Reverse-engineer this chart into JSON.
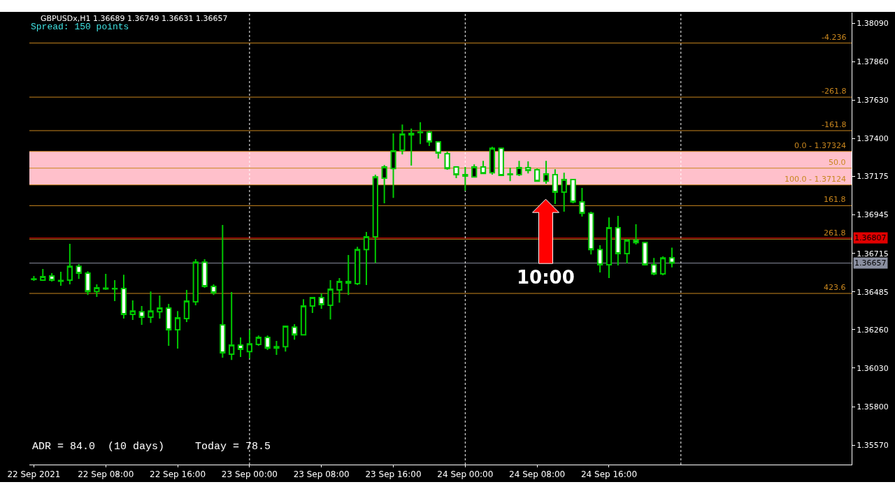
{
  "chart_data": {
    "type": "candlestick",
    "color": "#00c800",
    "x": [
      "2021-09-22T00:00",
      "2021-09-22T01:00",
      "2021-09-22T02:00",
      "2021-09-22T03:00",
      "2021-09-22T04:00",
      "2021-09-22T05:00",
      "2021-09-22T06:00",
      "2021-09-22T07:00",
      "2021-09-22T08:00",
      "2021-09-22T09:00",
      "2021-09-22T10:00",
      "2021-09-22T11:00",
      "2021-09-22T12:00",
      "2021-09-22T13:00",
      "2021-09-22T14:00",
      "2021-09-22T15:00",
      "2021-09-22T16:00",
      "2021-09-22T17:00",
      "2021-09-22T18:00",
      "2021-09-22T19:00",
      "2021-09-22T20:00",
      "2021-09-22T21:00",
      "2021-09-22T22:00",
      "2021-09-22T23:00",
      "2021-09-23T00:00",
      "2021-09-23T01:00",
      "2021-09-23T02:00",
      "2021-09-23T03:00",
      "2021-09-23T04:00",
      "2021-09-23T05:00",
      "2021-09-23T06:00",
      "2021-09-23T07:00",
      "2021-09-23T08:00",
      "2021-09-23T09:00",
      "2021-09-23T10:00",
      "2021-09-23T11:00",
      "2021-09-23T12:00",
      "2021-09-23T13:00",
      "2021-09-23T14:00",
      "2021-09-23T15:00",
      "2021-09-23T16:00",
      "2021-09-23T17:00",
      "2021-09-23T18:00",
      "2021-09-23T19:00",
      "2021-09-23T20:00",
      "2021-09-23T21:00",
      "2021-09-23T22:00",
      "2021-09-23T23:00",
      "2021-09-24T00:00",
      "2021-09-24T01:00",
      "2021-09-24T02:00",
      "2021-09-24T03:00",
      "2021-09-24T04:00",
      "2021-09-24T05:00",
      "2021-09-24T06:00",
      "2021-09-24T07:00",
      "2021-09-24T08:00",
      "2021-09-24T09:00",
      "2021-09-24T10:00",
      "2021-09-24T11:00",
      "2021-09-24T12:00",
      "2021-09-24T13:00",
      "2021-09-24T14:00",
      "2021-09-24T15:00",
      "2021-09-24T16:00",
      "2021-09-24T17:00",
      "2021-09-24T18:00",
      "2021-09-24T19:00",
      "2021-09-24T20:00",
      "2021-09-24T21:00",
      "2021-09-24T22:00",
      "2021-09-24T23:00"
    ],
    "ohlc": [
      [
        1.36563,
        1.3658,
        1.36551,
        1.36559
      ],
      [
        1.36555,
        1.36622,
        1.36555,
        1.36576
      ],
      [
        1.3658,
        1.36597,
        1.36547,
        1.36555
      ],
      [
        1.36553,
        1.36605,
        1.36522,
        1.36549
      ],
      [
        1.36555,
        1.36772,
        1.3653,
        1.36638
      ],
      [
        1.36638,
        1.36651,
        1.36563,
        1.36597
      ],
      [
        1.36597,
        1.36609,
        1.36467,
        1.36488
      ],
      [
        1.36488,
        1.3653,
        1.36455,
        1.36509
      ],
      [
        1.36507,
        1.36593,
        1.36497,
        1.36503
      ],
      [
        1.36505,
        1.36555,
        1.3643,
        1.36503
      ],
      [
        1.36505,
        1.36588,
        1.36326,
        1.36351
      ],
      [
        1.36351,
        1.36434,
        1.36317,
        1.36371
      ],
      [
        1.36367,
        1.36401,
        1.36288,
        1.36334
      ],
      [
        1.36334,
        1.36488,
        1.363,
        1.36371
      ],
      [
        1.36367,
        1.36463,
        1.36326,
        1.36388
      ],
      [
        1.36388,
        1.36413,
        1.36163,
        1.36259
      ],
      [
        1.36259,
        1.36371,
        1.36146,
        1.3633
      ],
      [
        1.36326,
        1.36497,
        1.36305,
        1.3643
      ],
      [
        1.36426,
        1.3668,
        1.36405,
        1.36663
      ],
      [
        1.36663,
        1.3668,
        1.36509,
        1.36518
      ],
      [
        1.36518,
        1.3653,
        1.36467,
        1.3648
      ],
      [
        1.36288,
        1.36885,
        1.36092,
        1.36121
      ],
      [
        1.36113,
        1.36484,
        1.36079,
        1.36167
      ],
      [
        1.36167,
        1.36213,
        1.36096,
        1.36142
      ],
      [
        1.36129,
        1.36259,
        1.36088,
        1.36175
      ],
      [
        1.36171,
        1.36225,
        1.36163,
        1.36213
      ],
      [
        1.36213,
        1.36225,
        1.36138,
        1.3615
      ],
      [
        1.3615,
        1.36192,
        1.36109,
        1.36158
      ],
      [
        1.36158,
        1.36284,
        1.36129,
        1.3628
      ],
      [
        1.36275,
        1.36292,
        1.362,
        1.36229
      ],
      [
        1.36229,
        1.36442,
        1.36229,
        1.36401
      ],
      [
        1.36401,
        1.36451,
        1.36359,
        1.36451
      ],
      [
        1.36451,
        1.36476,
        1.36384,
        1.36409
      ],
      [
        1.36405,
        1.36555,
        1.36321,
        1.36501
      ],
      [
        1.36497,
        1.36568,
        1.36421,
        1.36547
      ],
      [
        1.36547,
        1.36705,
        1.36467,
        1.36538
      ],
      [
        1.36534,
        1.36755,
        1.36526,
        1.36738
      ],
      [
        1.36738,
        1.36843,
        1.36526,
        1.36814
      ],
      [
        1.36814,
        1.37185,
        1.36659,
        1.37172
      ],
      [
        1.37164,
        1.37243,
        1.37014,
        1.37231
      ],
      [
        1.37222,
        1.37431,
        1.37047,
        1.37327
      ],
      [
        1.37331,
        1.37485,
        1.37306,
        1.37427
      ],
      [
        1.37423,
        1.3746,
        1.37239,
        1.37431
      ],
      [
        1.37439,
        1.37498,
        1.37368,
        1.37437
      ],
      [
        1.37439,
        1.37448,
        1.37356,
        1.37381
      ],
      [
        1.37381,
        1.37381,
        1.37281,
        1.37314
      ],
      [
        1.3731,
        1.37323,
        1.37214,
        1.37222
      ],
      [
        1.37231,
        1.37231,
        1.37164,
        1.37185
      ],
      [
        1.37185,
        1.37231,
        1.37089,
        1.37177
      ],
      [
        1.37172,
        1.37247,
        1.37172,
        1.37231
      ],
      [
        1.37231,
        1.37268,
        1.37193,
        1.37193
      ],
      [
        1.37197,
        1.37352,
        1.37185,
        1.37343
      ],
      [
        1.37343,
        1.37343,
        1.37181,
        1.37181
      ],
      [
        1.37185,
        1.37227,
        1.37147,
        1.37189
      ],
      [
        1.37185,
        1.37268,
        1.37177,
        1.37227
      ],
      [
        1.37227,
        1.37264,
        1.37193,
        1.3721
      ],
      [
        1.37214,
        1.37222,
        1.37143,
        1.37147
      ],
      [
        1.37147,
        1.37268,
        1.37131,
        1.37189
      ],
      [
        1.37185,
        1.37218,
        1.3701,
        1.37081
      ],
      [
        1.37081,
        1.37197,
        1.36964,
        1.37156
      ],
      [
        1.37156,
        1.3716,
        1.37014,
        1.37022
      ],
      [
        1.37022,
        1.37106,
        1.36935,
        1.36955
      ],
      [
        1.36955,
        1.36964,
        1.36709,
        1.36738
      ],
      [
        1.36738,
        1.36764,
        1.36601,
        1.36647
      ],
      [
        1.36647,
        1.3693,
        1.36568,
        1.36868
      ],
      [
        1.36868,
        1.36939,
        1.36643,
        1.36714
      ],
      [
        1.36714,
        1.36801,
        1.36655,
        1.36793
      ],
      [
        1.36793,
        1.36889,
        1.36768,
        1.3678
      ],
      [
        1.3678,
        1.3678,
        1.36647,
        1.36647
      ],
      [
        1.36647,
        1.36688,
        1.36584,
        1.36593
      ],
      [
        1.36593,
        1.36697,
        1.36584,
        1.36688
      ],
      [
        1.36689,
        1.36749,
        1.36631,
        1.36657
      ]
    ],
    "xlim": [
      "2021-09-21T23:30",
      "2021-09-25T19:00"
    ],
    "xticks": [
      {
        "value": "2021-09-22T00:00",
        "label": "22 Sep 2021"
      },
      {
        "value": "2021-09-22T08:00",
        "label": "22 Sep 08:00"
      },
      {
        "value": "2021-09-22T16:00",
        "label": "22 Sep 16:00"
      },
      {
        "value": "2021-09-23T00:00",
        "label": "23 Sep 00:00"
      },
      {
        "value": "2021-09-23T08:00",
        "label": "23 Sep 08:00"
      },
      {
        "value": "2021-09-23T16:00",
        "label": "23 Sep 16:00"
      },
      {
        "value": "2021-09-24T00:00",
        "label": "24 Sep 00:00"
      },
      {
        "value": "2021-09-24T08:00",
        "label": "24 Sep 08:00"
      },
      {
        "value": "2021-09-24T16:00",
        "label": "24 Sep 16:00"
      }
    ],
    "ylim": [
      1.35454,
      1.38153
    ],
    "yticks": [
      {
        "value": 1.3809,
        "label": "1.38090"
      },
      {
        "value": 1.3786,
        "label": "1.37860"
      },
      {
        "value": 1.3763,
        "label": "1.37630"
      },
      {
        "value": 1.374,
        "label": "1.37400"
      },
      {
        "value": 1.37175,
        "label": "1.37175"
      },
      {
        "value": 1.36945,
        "label": "1.36945"
      },
      {
        "value": 1.36715,
        "label": "1.36715"
      },
      {
        "value": 1.36485,
        "label": "1.36485"
      },
      {
        "value": 1.3626,
        "label": "1.36260"
      },
      {
        "value": 1.3603,
        "label": "1.36030"
      },
      {
        "value": 1.358,
        "label": "1.35800"
      },
      {
        "value": 1.3557,
        "label": "1.35570"
      }
    ],
    "bands": [
      {
        "axis": "y",
        "from": 1.37124,
        "to": 1.37324,
        "label": null,
        "color": "#ffc0cb"
      }
    ],
    "ref_lines": [
      {
        "axis": "y",
        "value": 1.37971,
        "label": null,
        "color": "#c8861e"
      },
      {
        "axis": "y",
        "value": 1.37648,
        "label": null,
        "color": "#c8861e"
      },
      {
        "axis": "y",
        "value": 1.37448,
        "label": null,
        "color": "#c8861e"
      },
      {
        "axis": "y",
        "value": 1.37324,
        "label": null,
        "color": "#c8861e"
      },
      {
        "axis": "y",
        "value": 1.37224,
        "label": null,
        "color": "#c8861e"
      },
      {
        "axis": "y",
        "value": 1.37124,
        "label": null,
        "color": "#c8861e"
      },
      {
        "axis": "y",
        "value": 1.37,
        "label": null,
        "color": "#c8861e"
      },
      {
        "axis": "y",
        "value": 1.368,
        "label": null,
        "color": "#c8861e"
      },
      {
        "axis": "y",
        "value": 1.36476,
        "label": null,
        "color": "#c8861e"
      },
      {
        "axis": "y",
        "value": 1.36807,
        "label": "1.36807",
        "color": "#e00000",
        "line_style": "solid"
      },
      {
        "axis": "y",
        "value": 1.36657,
        "label": "1.36657",
        "color": "#8a8fa0",
        "line_style": "solid"
      },
      {
        "axis": "x",
        "value": "2021-09-23T00:00",
        "label": null,
        "color": "#ffffff",
        "line_style": "dotted"
      },
      {
        "axis": "x",
        "value": "2021-09-24T00:00",
        "label": null,
        "color": "#ffffff",
        "line_style": "dotted"
      },
      {
        "axis": "x",
        "value": "2021-09-25T00:00",
        "label": null,
        "color": "#ffffff",
        "line_style": "dotted"
      }
    ],
    "annotations": [
      "GBPUSDx,H1 1.36689 1.36749 1.36631 1.36657",
      "Spread: 150 points",
      "ADR = 84.0  (10 days)",
      "Today = 78.5",
      "10:00",
      {
        "text": "-4.236",
        "x": "2021-09-25T18:30",
        "y": 1.37971
      },
      {
        "text": "-261.8",
        "x": "2021-09-25T18:30",
        "y": 1.37648
      },
      {
        "text": "-161.8",
        "x": "2021-09-25T18:30",
        "y": 1.37448
      },
      {
        "text": "0.0 - 1.37324",
        "x": "2021-09-25T18:30",
        "y": 1.37324
      },
      {
        "text": "50.0",
        "x": "2021-09-25T18:30",
        "y": 1.37224
      },
      {
        "text": "100.0 - 1.37124",
        "x": "2021-09-25T18:30",
        "y": 1.37124
      },
      {
        "text": "161.8",
        "x": "2021-09-25T18:30",
        "y": 1.37
      },
      {
        "text": "261.8",
        "x": "2021-09-25T18:30",
        "y": 1.368
      },
      {
        "text": "423.6",
        "x": "2021-09-25T18:30",
        "y": 1.36476
      }
    ]
  }
}
